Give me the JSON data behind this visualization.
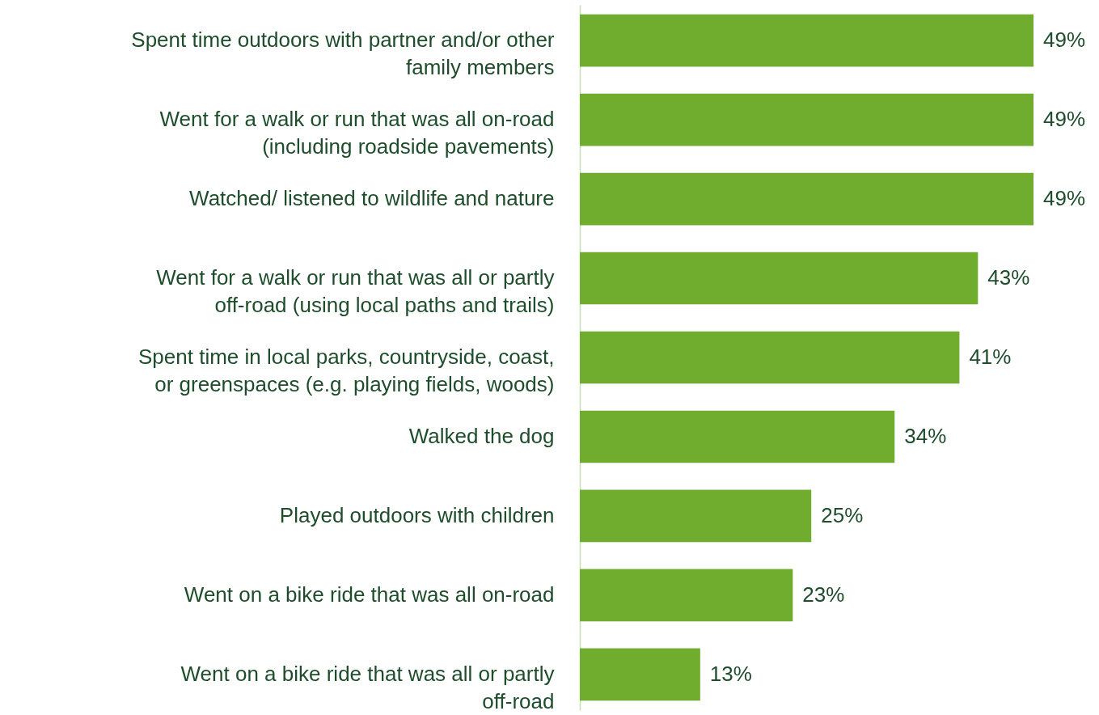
{
  "chart_data": {
    "type": "bar",
    "orientation": "horizontal",
    "value_labels": [
      "49%",
      "49%",
      "49%",
      "43%",
      "41%",
      "34%",
      "25%",
      "23%",
      "13%"
    ],
    "color": "#70ad2f",
    "categories": [
      "Spent time outdoors with partner and/or other family members",
      "Went for a walk or run that was all on-road (including roadside pavements)",
      "Watched/ listened to wildlife and nature",
      "Went for a walk or run that was all or partly off-road (using local paths and trails)",
      "Spent time in local parks, countryside, coast, or greenspaces (e.g. playing fields, woods)",
      "Walked the dog",
      "Played outdoors with children",
      "Went on a bike ride that was all on-road",
      "Went on a bike ride that was all or partly off-road"
    ],
    "values": [
      49,
      49,
      49,
      43,
      41,
      34,
      25,
      23,
      13
    ]
  }
}
